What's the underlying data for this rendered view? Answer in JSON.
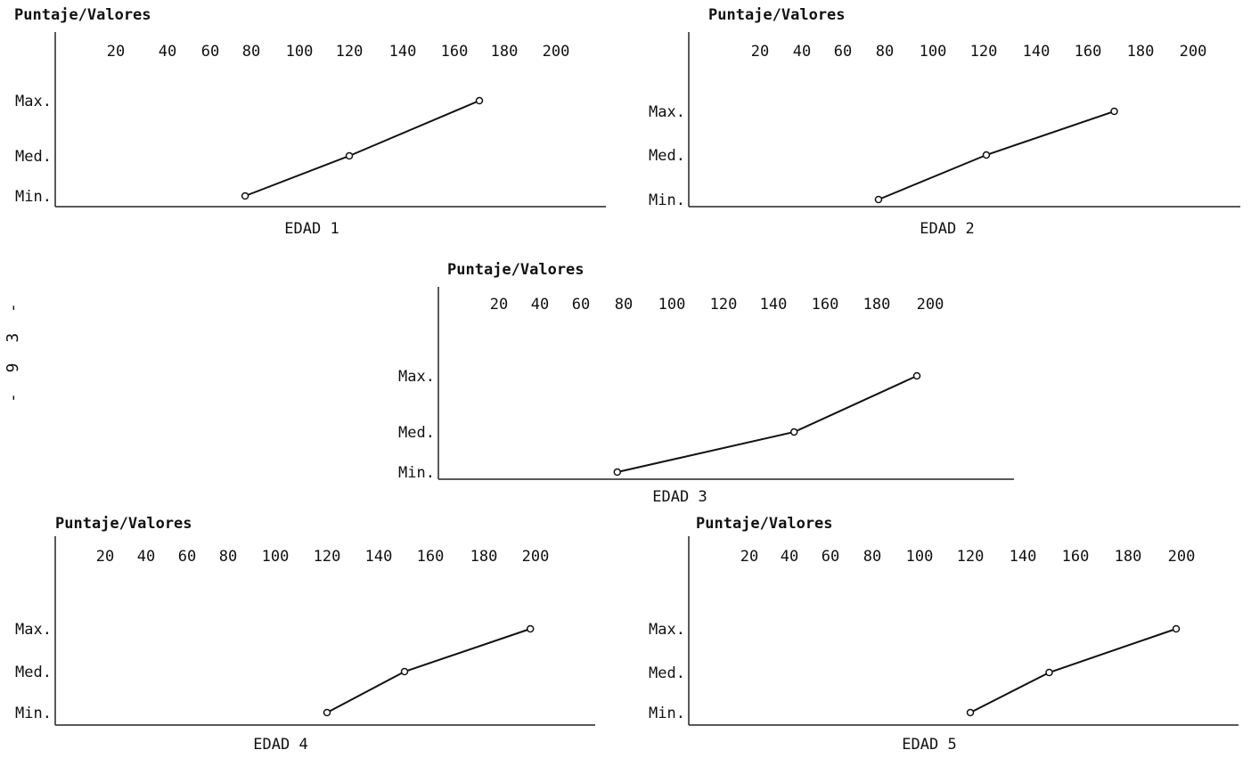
{
  "page": {
    "number_label": "- 9 3 -"
  },
  "chart_data": [
    {
      "type": "line",
      "title": "EDAD 1",
      "ylabel": "Puntaje/Valores",
      "x_ticks": [
        20,
        40,
        60,
        80,
        100,
        120,
        140,
        160,
        180,
        200
      ],
      "y_categories": [
        "Min.",
        "Med.",
        "Max."
      ],
      "x": [
        77,
        120,
        170
      ],
      "y": [
        "Min.",
        "Med.",
        "Max."
      ]
    },
    {
      "type": "line",
      "title": "EDAD 2",
      "ylabel": "Puntaje/Valores",
      "x_ticks": [
        20,
        40,
        60,
        80,
        100,
        120,
        140,
        160,
        180,
        200
      ],
      "y_categories": [
        "Min.",
        "Med.",
        "Max."
      ],
      "x": [
        77,
        121,
        170
      ],
      "y": [
        "Min.",
        "Med.",
        "Max."
      ]
    },
    {
      "type": "line",
      "title": "EDAD 3",
      "ylabel": "Puntaje/Valores",
      "x_ticks": [
        20,
        40,
        60,
        80,
        100,
        120,
        140,
        160,
        180,
        200
      ],
      "y_categories": [
        "Min.",
        "Med.",
        "Max."
      ],
      "x": [
        77,
        148,
        195
      ],
      "y": [
        "Min.",
        "Med.",
        "Max."
      ]
    },
    {
      "type": "line",
      "title": "EDAD 4",
      "ylabel": "Puntaje/Valores",
      "x_ticks": [
        20,
        40,
        60,
        80,
        100,
        120,
        140,
        160,
        180,
        200
      ],
      "y_categories": [
        "Min.",
        "Med.",
        "Max."
      ],
      "x": [
        120,
        150,
        198
      ],
      "y": [
        "Min.",
        "Med.",
        "Max."
      ]
    },
    {
      "type": "line",
      "title": "EDAD 5",
      "ylabel": "Puntaje/Valores",
      "x_ticks": [
        20,
        40,
        60,
        80,
        100,
        120,
        140,
        160,
        180,
        200
      ],
      "y_categories": [
        "Min.",
        "Med.",
        "Max."
      ],
      "x": [
        120,
        150,
        198
      ],
      "y": [
        "Min.",
        "Med.",
        "Max."
      ]
    }
  ]
}
